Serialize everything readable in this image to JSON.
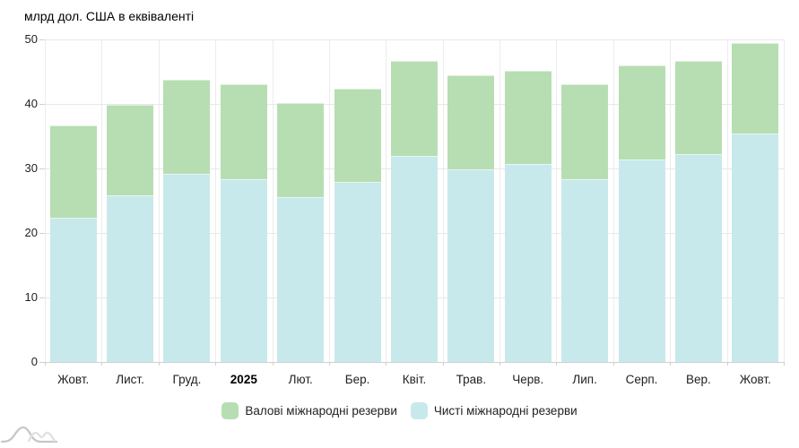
{
  "chart_data": {
    "type": "bar",
    "style": "overlaid-columns",
    "title": "млрд дол. США в еквіваленті",
    "categories": [
      "Жовт.",
      "Лист.",
      "Груд.",
      "2025",
      "Лют.",
      "Бер.",
      "Квіт.",
      "Трав.",
      "Черв.",
      "Лип.",
      "Серп.",
      "Вер.",
      "Жовт."
    ],
    "bold_categories": [
      "2025"
    ],
    "series": [
      {
        "name": "Валові міжнародні резерви",
        "color": "#b7deb2",
        "values": [
          36.6,
          39.9,
          43.8,
          43.0,
          40.1,
          42.4,
          46.7,
          44.5,
          45.1,
          43.0,
          46.0,
          46.6,
          49.5
        ]
      },
      {
        "name": "Чисті міжнародні резерви",
        "color": "#c8e9eb",
        "values": [
          22.3,
          25.9,
          29.1,
          28.4,
          25.6,
          27.9,
          32.0,
          29.8,
          30.7,
          28.3,
          31.4,
          32.2,
          35.4
        ]
      }
    ],
    "ylim": [
      0,
      50
    ],
    "yticks": [
      0,
      10,
      20,
      30,
      40,
      50
    ],
    "xlabel": "",
    "ylabel": "",
    "grid": true,
    "legend_position": "bottom"
  }
}
